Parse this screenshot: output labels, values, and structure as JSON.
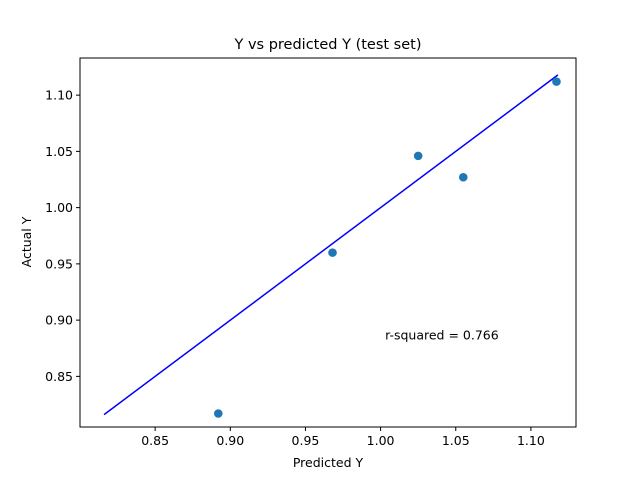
{
  "chart_data": {
    "type": "scatter",
    "title": "Y vs predicted Y (test set)",
    "xlabel": "Predicted Y",
    "ylabel": "Actual Y",
    "xlim": [
      0.8,
      1.13
    ],
    "ylim": [
      0.805,
      1.133
    ],
    "x_ticks": [
      0.85,
      0.9,
      0.95,
      1.0,
      1.05,
      1.1
    ],
    "x_tick_labels": [
      "0.85",
      "0.90",
      "0.95",
      "1.00",
      "1.05",
      "1.10"
    ],
    "y_ticks": [
      0.85,
      0.9,
      0.95,
      1.0,
      1.05,
      1.1
    ],
    "y_tick_labels": [
      "0.85",
      "0.90",
      "0.95",
      "1.00",
      "1.05",
      "1.10"
    ],
    "grid": false,
    "points": [
      {
        "x": 0.892,
        "y": 0.817
      },
      {
        "x": 0.968,
        "y": 0.96
      },
      {
        "x": 1.025,
        "y": 1.046
      },
      {
        "x": 1.055,
        "y": 1.027
      },
      {
        "x": 1.117,
        "y": 1.112
      }
    ],
    "fit_line": {
      "x": [
        0.816,
        1.118
      ],
      "y": [
        0.816,
        1.118
      ]
    },
    "annotation": {
      "text": "r-squared = 0.766",
      "x": 1.003,
      "y": 0.883
    },
    "colors": {
      "points": "#1f77b4",
      "line": "#0000ff",
      "axes": "#000000"
    }
  }
}
